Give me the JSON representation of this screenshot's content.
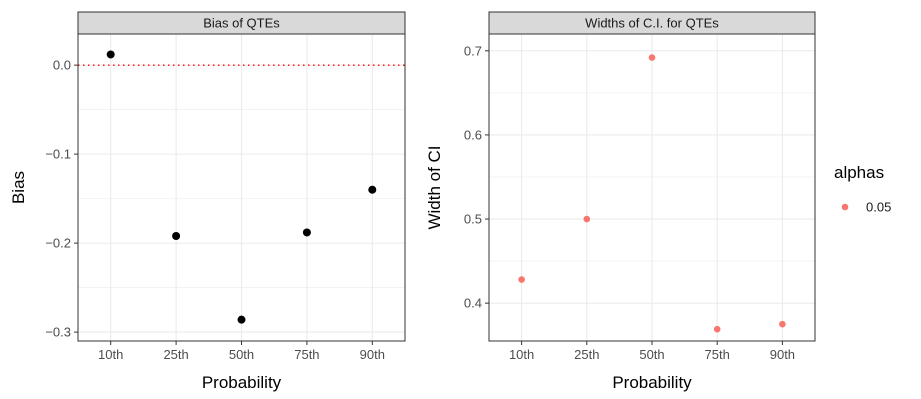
{
  "chart_data": [
    {
      "type": "scatter",
      "title": "Bias of QTEs",
      "xlabel": "Probability",
      "ylabel": "Bias",
      "categories": [
        "10th",
        "25th",
        "50th",
        "75th",
        "90th"
      ],
      "series": [
        {
          "values": [
            0.012,
            -0.192,
            -0.286,
            -0.188,
            -0.14
          ],
          "color": "#000000"
        }
      ],
      "ylim": [
        -0.31,
        0.035
      ],
      "yticks": [
        0.0,
        -0.1,
        -0.2,
        -0.3
      ],
      "ytick_labels": [
        "0.0",
        "−0.1",
        "−0.2",
        "−0.3"
      ],
      "reference_line": {
        "y": 0.0,
        "color": "#ff0000",
        "style": "dotted"
      },
      "grid": true
    },
    {
      "type": "scatter",
      "title": "Widths of C.I. for QTEs",
      "xlabel": "Probability",
      "ylabel": "Width of CI",
      "categories": [
        "10th",
        "25th",
        "50th",
        "75th",
        "90th"
      ],
      "series": [
        {
          "name": "0.05",
          "values": [
            0.428,
            0.5,
            0.692,
            0.369,
            0.375
          ],
          "color": "#f8766d"
        }
      ],
      "ylim": [
        0.355,
        0.72
      ],
      "yticks": [
        0.4,
        0.5,
        0.6,
        0.7
      ],
      "ytick_labels": [
        "0.4",
        "0.5",
        "0.6",
        "0.7"
      ],
      "grid": true,
      "legend": {
        "title": "alphas",
        "position": "right"
      }
    }
  ]
}
